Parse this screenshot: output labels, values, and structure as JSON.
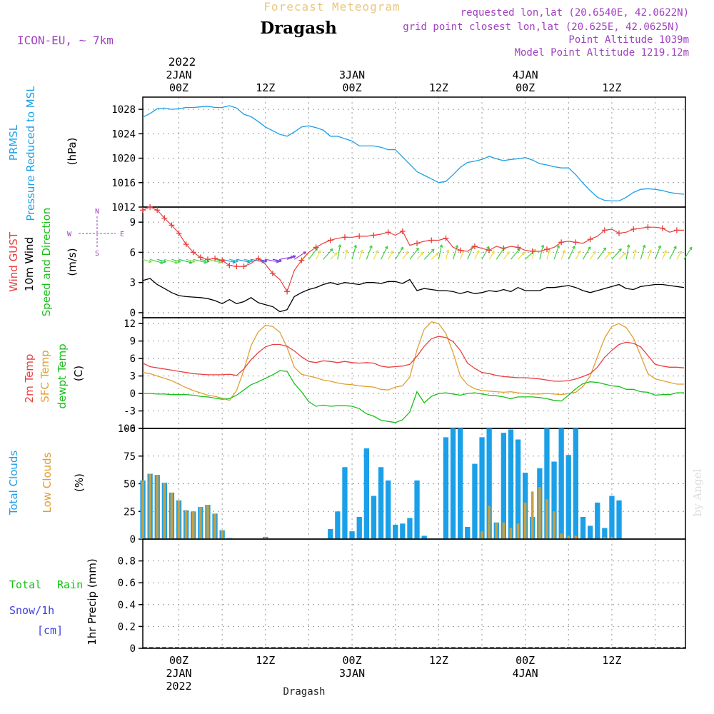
{
  "header": {
    "title_top": "Forecast Meteogram",
    "station": "Dragash",
    "model": "ICON-EU, ~ 7km",
    "requested": "requested lon,lat (20.6540E, 42.0622N)",
    "grid_point": "grid point closest lon,lat (20.625E, 42.0625N)",
    "point_altitude": "Point Altitude 1039m",
    "model_altitude": "Model Point Altitude 1219.12m",
    "footer_station": "Dragash",
    "watermark": "by Angel"
  },
  "colors": {
    "pressure": "#1aa0e8",
    "gust": "#e84040",
    "wind": "#000000",
    "wind_arrows": "#2bc22b",
    "temp2m": "#e84040",
    "sfc": "#e0a030",
    "dewpt": "#18c018",
    "total_cloud": "#1aa0e8",
    "low_cloud": "#c8a040",
    "rain": "#18c018",
    "snow": "#4040e0",
    "compass": "#a040c0",
    "header_purple": "#a040c0",
    "header_gold": "#e8c880"
  },
  "time_axis": {
    "top_year": "2022",
    "top_labels": [
      {
        "t": 0,
        "l1": "2JAN",
        "l2": "00Z"
      },
      {
        "t": 12,
        "l1": "",
        "l2": "12Z"
      },
      {
        "t": 24,
        "l1": "3JAN",
        "l2": "00Z"
      },
      {
        "t": 36,
        "l1": "",
        "l2": "12Z"
      },
      {
        "t": 48,
        "l1": "4JAN",
        "l2": "00Z"
      },
      {
        "t": 60,
        "l1": "",
        "l2": "12Z"
      }
    ],
    "bottom_labels": [
      {
        "t": 0,
        "l1": "00Z",
        "l2": "2JAN",
        "l3": "2022"
      },
      {
        "t": 12,
        "l1": "12Z",
        "l2": "",
        "l3": ""
      },
      {
        "t": 24,
        "l1": "00Z",
        "l2": "3JAN",
        "l3": ""
      },
      {
        "t": 36,
        "l1": "12Z",
        "l2": "",
        "l3": ""
      },
      {
        "t": 48,
        "l1": "00Z",
        "l2": "4JAN",
        "l3": ""
      },
      {
        "t": 60,
        "l1": "12Z",
        "l2": "",
        "l3": ""
      }
    ]
  },
  "panels": {
    "pressure": {
      "label1": "PRMSL",
      "label2": "Pressure Reduced to MSL",
      "unit": "(hPa)"
    },
    "wind": {
      "label_gust": "Wind GUST",
      "label_wind": "10m Wind",
      "label_dir": "Speed and Direction",
      "unit": "(m/s)",
      "compass_n": "N",
      "compass_s": "S",
      "compass_w": "W",
      "compass_e": "E"
    },
    "temp": {
      "label1": "2m Temp",
      "label2": "SFC Temp",
      "label3": "dewpt Temp",
      "unit": "(C)"
    },
    "clouds": {
      "label1": "Total Clouds",
      "label2": "Low Clouds",
      "unit": "(%)"
    },
    "precip": {
      "label_total": "Total",
      "label_rain": "Rain",
      "label_snow": "Snow/1h",
      "label_cm": "[cm]",
      "label_axis": "1hr Precip (mm)"
    }
  },
  "chart_data": [
    {
      "type": "line",
      "name": "PRMSL",
      "x": [
        -5,
        -4,
        -3,
        -2,
        -1,
        0,
        1,
        2,
        3,
        4,
        5,
        6,
        7,
        8,
        9,
        10,
        11,
        12,
        13,
        14,
        15,
        16,
        17,
        18,
        19,
        20,
        21,
        22,
        23,
        24,
        25,
        26,
        27,
        28,
        29,
        30,
        31,
        32,
        33,
        34,
        35,
        36,
        37,
        38,
        39,
        40,
        41,
        42,
        43,
        44,
        45,
        46,
        47,
        48,
        49,
        50,
        51,
        52,
        53,
        54,
        55,
        56,
        57,
        58,
        59,
        60,
        61,
        62,
        63,
        64,
        65,
        66,
        67,
        68,
        69,
        70
      ],
      "y": [
        1026.7,
        1027.3,
        1028.1,
        1028.2,
        1028.0,
        1028.1,
        1028.3,
        1028.3,
        1028.4,
        1028.5,
        1028.3,
        1028.3,
        1028.6,
        1028.2,
        1027.2,
        1026.8,
        1026.0,
        1025.1,
        1024.5,
        1023.9,
        1023.6,
        1024.3,
        1025.1,
        1025.3,
        1025.0,
        1024.6,
        1023.6,
        1023.6,
        1023.2,
        1022.8,
        1022.0,
        1022.0,
        1022.0,
        1021.8,
        1021.4,
        1021.4,
        1020.2,
        1019.0,
        1017.8,
        1017.2,
        1016.6,
        1016.0,
        1016.2,
        1017.3,
        1018.5,
        1019.3,
        1019.5,
        1019.8,
        1020.3,
        1019.9,
        1019.6,
        1019.8,
        1019.9,
        1020.1,
        1019.7,
        1019.1,
        1018.9,
        1018.6,
        1018.4,
        1018.4,
        1017.3,
        1015.9,
        1014.7,
        1013.6,
        1013.1,
        1013.0,
        1013.0,
        1013.6,
        1014.4,
        1014.9,
        1015.0,
        1014.9,
        1014.7,
        1014.4,
        1014.2,
        1014.1
      ],
      "ylim": [
        1012,
        1030
      ],
      "yticks": [
        1012,
        1016,
        1020,
        1024,
        1028
      ],
      "ylabel": "(hPa)"
    },
    {
      "type": "line",
      "name": "Wind GUST",
      "x": [
        -5,
        -4,
        -3,
        -2,
        -1,
        0,
        1,
        2,
        3,
        4,
        5,
        6,
        7,
        8,
        9,
        10,
        11,
        12,
        13,
        14,
        15,
        16,
        17,
        18,
        19,
        20,
        21,
        22,
        23,
        24,
        25,
        26,
        27,
        28,
        29,
        30,
        31,
        32,
        33,
        34,
        35,
        36,
        37,
        38,
        39,
        40,
        41,
        42,
        43,
        44,
        45,
        46,
        47,
        48,
        49,
        50,
        51,
        52,
        53,
        54,
        55,
        56,
        57,
        58,
        59,
        60,
        61,
        62,
        63,
        64,
        65,
        66,
        67,
        68,
        69,
        70
      ],
      "y": [
        10.2,
        10.5,
        10.2,
        9.4,
        8.7,
        7.9,
        6.8,
        6.0,
        5.5,
        5.3,
        5.4,
        5.2,
        4.7,
        4.6,
        4.6,
        4.9,
        5.4,
        4.8,
        3.9,
        3.3,
        2.1,
        4.2,
        5.2,
        6.0,
        6.5,
        6.9,
        7.2,
        7.4,
        7.5,
        7.5,
        7.6,
        7.6,
        7.7,
        7.8,
        8.0,
        7.7,
        8.1,
        6.7,
        6.9,
        7.1,
        7.2,
        7.2,
        7.4,
        6.5,
        6.2,
        6.1,
        6.6,
        6.4,
        6.2,
        6.6,
        6.4,
        6.6,
        6.5,
        6.2,
        6.1,
        6.1,
        6.3,
        6.5,
        7.0,
        7.1,
        7.0,
        6.9,
        7.3,
        7.6,
        8.2,
        8.3,
        7.9,
        8.0,
        8.3,
        8.4,
        8.5,
        8.5,
        8.4,
        8.0,
        8.2,
        8.2
      ],
      "ylim": [
        -0.5,
        10.5
      ],
      "yticks": [
        0,
        3,
        6,
        9
      ],
      "ylabel": "(m/s)"
    },
    {
      "type": "line",
      "name": "10m Wind",
      "x": [
        -5,
        -4,
        -3,
        -2,
        -1,
        0,
        1,
        2,
        3,
        4,
        5,
        6,
        7,
        8,
        9,
        10,
        11,
        12,
        13,
        14,
        15,
        16,
        17,
        18,
        19,
        20,
        21,
        22,
        23,
        24,
        25,
        26,
        27,
        28,
        29,
        30,
        31,
        32,
        33,
        34,
        35,
        36,
        37,
        38,
        39,
        40,
        41,
        42,
        43,
        44,
        45,
        46,
        47,
        48,
        49,
        50,
        51,
        52,
        53,
        54,
        55,
        56,
        57,
        58,
        59,
        60,
        61,
        62,
        63,
        64,
        65,
        66,
        67,
        68,
        69,
        70
      ],
      "y": [
        3.2,
        3.4,
        2.8,
        2.4,
        2.0,
        1.7,
        1.6,
        1.55,
        1.5,
        1.4,
        1.2,
        0.9,
        1.3,
        0.9,
        1.1,
        1.5,
        1.0,
        0.8,
        0.6,
        0.1,
        0.3,
        1.6,
        2.0,
        2.3,
        2.5,
        2.8,
        3.0,
        2.8,
        3.0,
        2.9,
        2.8,
        3.0,
        3.0,
        2.9,
        3.1,
        3.1,
        2.9,
        3.3,
        2.2,
        2.4,
        2.3,
        2.2,
        2.2,
        2.1,
        1.9,
        2.1,
        1.9,
        2.0,
        2.2,
        2.1,
        2.3,
        2.1,
        2.5,
        2.2,
        2.2,
        2.2,
        2.5,
        2.5,
        2.6,
        2.7,
        2.5,
        2.2,
        2.0,
        2.2,
        2.4,
        2.6,
        2.8,
        2.4,
        2.3,
        2.6,
        2.7,
        2.8,
        2.8,
        2.7,
        2.6,
        2.5
      ]
    },
    {
      "type": "line",
      "name": "2m Temp",
      "x": [
        -5,
        -4,
        -3,
        -2,
        -1,
        0,
        1,
        2,
        3,
        4,
        5,
        6,
        7,
        8,
        9,
        10,
        11,
        12,
        13,
        14,
        15,
        16,
        17,
        18,
        19,
        20,
        21,
        22,
        23,
        24,
        25,
        26,
        27,
        28,
        29,
        30,
        31,
        32,
        33,
        34,
        35,
        36,
        37,
        38,
        39,
        40,
        41,
        42,
        43,
        44,
        45,
        46,
        47,
        48,
        49,
        50,
        51,
        52,
        53,
        54,
        55,
        56,
        57,
        58,
        59,
        60,
        61,
        62,
        63,
        64,
        65,
        66,
        67,
        68,
        69,
        70
      ],
      "y": [
        5.2,
        4.6,
        4.4,
        4.2,
        4.0,
        3.8,
        3.6,
        3.4,
        3.3,
        3.2,
        3.2,
        3.2,
        3.3,
        3.1,
        4.2,
        5.8,
        7.0,
        8.0,
        8.4,
        8.4,
        8.1,
        7.3,
        6.3,
        5.5,
        5.3,
        5.6,
        5.5,
        5.3,
        5.5,
        5.3,
        5.2,
        5.3,
        5.2,
        4.7,
        4.5,
        4.6,
        4.7,
        5.0,
        6.4,
        8.1,
        9.4,
        9.8,
        9.6,
        8.9,
        7.4,
        5.2,
        4.3,
        3.6,
        3.4,
        3.1,
        2.9,
        2.8,
        2.7,
        2.7,
        2.6,
        2.5,
        2.3,
        2.1,
        2.1,
        2.2,
        2.5,
        2.9,
        3.4,
        4.5,
        6.2,
        7.4,
        8.4,
        8.8,
        8.6,
        8.0,
        6.5,
        5.0,
        4.7,
        4.5,
        4.5,
        4.4
      ],
      "ylim": [
        -6,
        13
      ],
      "yticks": [
        -6,
        -3,
        0,
        3,
        6,
        9,
        12
      ],
      "ylabel": "(C)"
    },
    {
      "type": "line",
      "name": "SFC Temp",
      "x": [
        -5,
        -4,
        -3,
        -2,
        -1,
        0,
        1,
        2,
        3,
        4,
        5,
        6,
        7,
        8,
        9,
        10,
        11,
        12,
        13,
        14,
        15,
        16,
        17,
        18,
        19,
        20,
        21,
        22,
        23,
        24,
        25,
        26,
        27,
        28,
        29,
        30,
        31,
        32,
        33,
        34,
        35,
        36,
        37,
        38,
        39,
        40,
        41,
        42,
        43,
        44,
        45,
        46,
        47,
        48,
        49,
        50,
        51,
        52,
        53,
        54,
        55,
        56,
        57,
        58,
        59,
        60,
        61,
        62,
        63,
        64,
        65,
        66,
        67,
        68,
        69,
        70
      ],
      "y": [
        3.6,
        3.4,
        3.0,
        2.6,
        2.2,
        1.6,
        1.0,
        0.5,
        0.1,
        -0.3,
        -0.5,
        -0.8,
        -1.2,
        0.5,
        4.0,
        8.2,
        10.6,
        11.7,
        11.5,
        10.5,
        7.9,
        4.5,
        3.3,
        3.0,
        2.7,
        2.3,
        2.1,
        1.8,
        1.6,
        1.5,
        1.3,
        1.2,
        1.1,
        0.7,
        0.6,
        1.1,
        1.3,
        2.8,
        7.5,
        11.0,
        12.3,
        12.0,
        10.3,
        7.0,
        3.0,
        1.5,
        0.8,
        0.5,
        0.4,
        0.3,
        0.2,
        0.3,
        0.1,
        0.0,
        -0.1,
        -0.1,
        0.0,
        -0.1,
        -0.2,
        0.0,
        0.2,
        1.2,
        3.0,
        6.3,
        9.5,
        11.5,
        12.0,
        11.3,
        9.5,
        6.5,
        3.4,
        2.5,
        2.2,
        1.9,
        1.6,
        1.6
      ]
    },
    {
      "type": "line",
      "name": "dewpt Temp",
      "x": [
        -5,
        -4,
        -3,
        -2,
        -1,
        0,
        1,
        2,
        3,
        4,
        5,
        6,
        7,
        8,
        9,
        10,
        11,
        12,
        13,
        14,
        15,
        16,
        17,
        18,
        19,
        20,
        21,
        22,
        23,
        24,
        25,
        26,
        27,
        28,
        29,
        30,
        31,
        32,
        33,
        34,
        35,
        36,
        37,
        38,
        39,
        40,
        41,
        42,
        43,
        44,
        45,
        46,
        47,
        48,
        49,
        50,
        51,
        52,
        53,
        54,
        55,
        56,
        57,
        58,
        59,
        60,
        61,
        62,
        63,
        64,
        65,
        66,
        67,
        68,
        69,
        70
      ],
      "y": [
        0.0,
        0.0,
        -0.1,
        -0.1,
        -0.2,
        -0.2,
        -0.2,
        -0.3,
        -0.5,
        -0.6,
        -0.8,
        -1.0,
        -0.9,
        -0.3,
        0.6,
        1.5,
        2.0,
        2.6,
        3.2,
        3.9,
        3.8,
        1.7,
        0.3,
        -1.4,
        -2.2,
        -2.0,
        -2.2,
        -2.1,
        -2.1,
        -2.2,
        -2.6,
        -3.5,
        -3.9,
        -4.6,
        -4.8,
        -5.0,
        -4.5,
        -3.2,
        0.3,
        -1.6,
        -0.5,
        0.0,
        0.1,
        -0.1,
        -0.3,
        0.0,
        0.1,
        -0.1,
        -0.3,
        -0.4,
        -0.6,
        -0.9,
        -0.6,
        -0.6,
        -0.6,
        -0.7,
        -0.9,
        -1.2,
        -1.3,
        -0.3,
        0.8,
        1.7,
        2.0,
        1.9,
        1.6,
        1.3,
        1.2,
        0.7,
        0.7,
        0.3,
        0.2,
        -0.3,
        -0.2,
        -0.2,
        0.1,
        0.1
      ]
    },
    {
      "type": "bar",
      "name": "Total Clouds",
      "x": [
        -5,
        -4,
        -3,
        -2,
        -1,
        0,
        1,
        2,
        3,
        4,
        5,
        6,
        7,
        8,
        9,
        10,
        11,
        12,
        13,
        14,
        15,
        16,
        17,
        18,
        19,
        20,
        21,
        22,
        23,
        24,
        25,
        26,
        27,
        28,
        29,
        30,
        31,
        32,
        33,
        34,
        35,
        36,
        37,
        38,
        39,
        40,
        41,
        42,
        43,
        44,
        45,
        46,
        47,
        48,
        49,
        50,
        51,
        52,
        53,
        54,
        55,
        56,
        57,
        58,
        59,
        60,
        61,
        62,
        63,
        64,
        65,
        66,
        67,
        68,
        69,
        70
      ],
      "values": [
        53,
        59,
        58,
        51,
        42,
        35,
        26,
        25,
        29,
        31,
        23,
        8,
        1,
        0,
        0,
        0,
        0,
        2,
        0,
        0,
        0,
        0,
        0,
        0,
        0,
        0,
        9,
        25,
        65,
        7,
        20,
        82,
        39,
        65,
        53,
        13,
        14,
        19,
        53,
        3,
        0,
        0,
        92,
        100,
        100,
        11,
        68,
        92,
        100,
        15,
        96,
        99,
        90,
        60,
        20,
        64,
        100,
        70,
        100,
        76,
        100,
        20,
        12,
        33,
        10,
        39,
        35,
        0,
        0,
        0,
        0,
        0,
        0,
        0,
        0,
        0
      ],
      "ylim": [
        0,
        100
      ],
      "yticks": [
        0,
        25,
        50,
        75,
        100
      ],
      "ylabel": "(%)"
    },
    {
      "type": "bar",
      "name": "Low Clouds",
      "x": [
        -5,
        -4,
        -3,
        -2,
        -1,
        0,
        1,
        2,
        3,
        4,
        5,
        6,
        7,
        8,
        9,
        10,
        11,
        12,
        13,
        14,
        15,
        16,
        17,
        18,
        19,
        20,
        21,
        22,
        23,
        24,
        25,
        26,
        27,
        28,
        29,
        30,
        31,
        32,
        33,
        34,
        35,
        36,
        37,
        38,
        39,
        40,
        41,
        42,
        43,
        44,
        45,
        46,
        47,
        48,
        49,
        50,
        51,
        52,
        53,
        54,
        55,
        56,
        57,
        58,
        59,
        60,
        61,
        62,
        63,
        64,
        65,
        66,
        67,
        68,
        69,
        70
      ],
      "values": [
        53,
        59,
        58,
        51,
        42,
        35,
        26,
        25,
        29,
        31,
        23,
        8,
        0,
        0,
        0,
        0,
        0,
        2,
        0,
        0,
        0,
        0,
        0,
        0,
        0,
        0,
        0,
        0,
        0,
        0,
        0,
        0,
        0,
        0,
        0,
        0,
        0,
        0,
        0,
        0,
        0,
        0,
        0,
        0,
        0,
        0,
        0,
        7,
        30,
        15,
        15,
        10,
        14,
        33,
        43,
        47,
        36,
        25,
        5,
        3,
        3,
        0,
        0,
        0,
        2,
        2,
        0,
        0,
        0,
        0,
        0,
        0,
        0,
        0,
        0,
        0
      ]
    },
    {
      "type": "line",
      "name": "1hr Precip",
      "x": [
        -5,
        70
      ],
      "y": [
        0,
        0
      ],
      "ylim": [
        0,
        1.0
      ],
      "yticks": [
        0,
        0.2,
        0.4,
        0.6,
        0.8
      ],
      "ylabel": "1hr Precip (mm)"
    }
  ]
}
